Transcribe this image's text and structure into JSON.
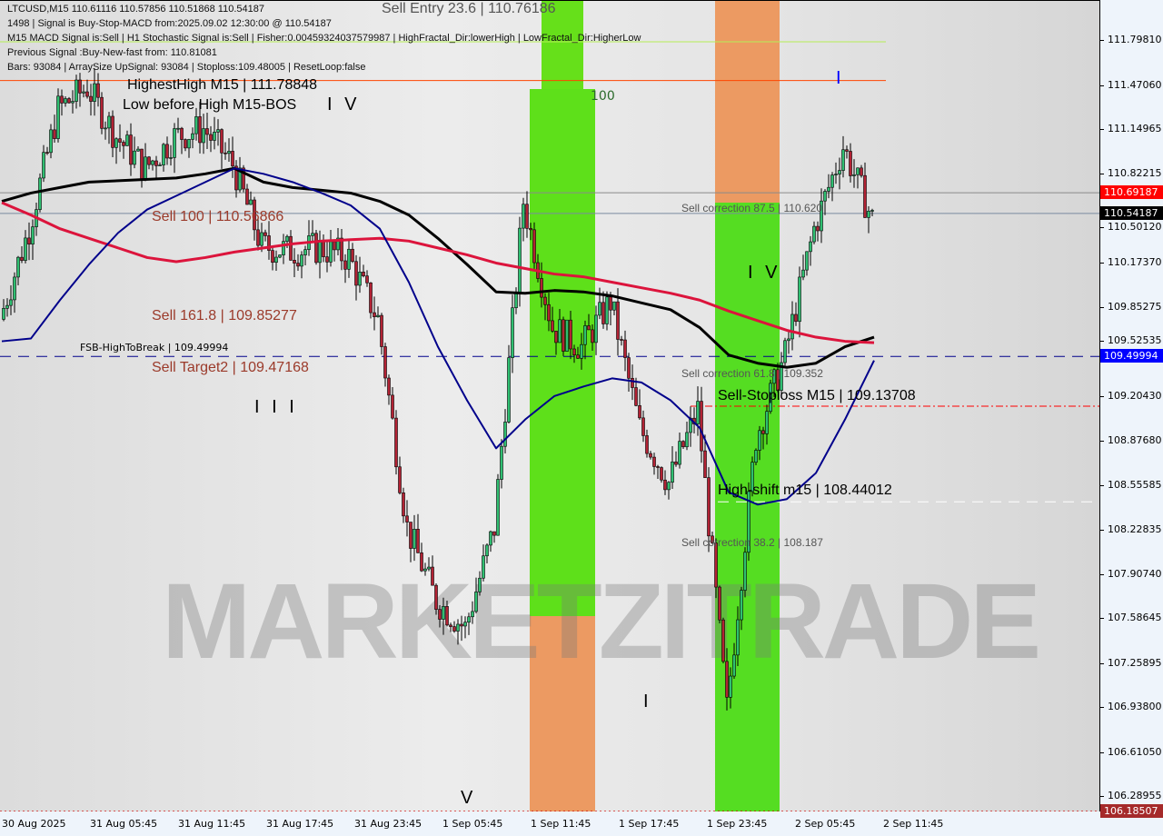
{
  "chart_data": {
    "type": "candlestick",
    "symbol": "LTCUSD",
    "timeframe": "M15",
    "ylim": [
      106.18,
      112.09
    ],
    "y_ticks": [
      "111.79810",
      "111.47060",
      "111.14965",
      "110.82215",
      "110.50120",
      "110.17370",
      "109.85275",
      "109.52535",
      "109.20430",
      "108.87680",
      "108.55585",
      "108.22835",
      "107.90740",
      "107.58645",
      "107.25895",
      "106.93800",
      "106.61050",
      "106.28955"
    ],
    "x_ticks": [
      "30 Aug 2025",
      "31 Aug 05:45",
      "31 Aug 11:45",
      "31 Aug 17:45",
      "31 Aug 23:45",
      "1 Sep 05:45",
      "1 Sep 11:45",
      "1 Sep 17:45",
      "1 Sep 23:45",
      "2 Sep 05:45",
      "2 Sep 11:45"
    ],
    "times": [
      "30 Aug 23:45",
      "31 Aug 01:45",
      "31 Aug 03:45",
      "31 Aug 05:45",
      "31 Aug 07:45",
      "31 Aug 09:45",
      "31 Aug 11:45",
      "31 Aug 13:45",
      "31 Aug 15:45",
      "31 Aug 17:45",
      "31 Aug 19:45",
      "31 Aug 21:45",
      "31 Aug 23:45",
      "1 Sep 01:45",
      "1 Sep 03:45",
      "1 Sep 05:45",
      "1 Sep 07:45",
      "1 Sep 09:45",
      "1 Sep 11:45",
      "1 Sep 13:45",
      "1 Sep 15:45",
      "1 Sep 17:45",
      "1 Sep 19:45",
      "1 Sep 21:45",
      "1 Sep 23:45",
      "2 Sep 01:45",
      "2 Sep 03:45",
      "2 Sep 05:45",
      "2 Sep 07:45",
      "2 Sep 09:45",
      "2 Sep 11:45"
    ],
    "close": [
      109.77,
      110.43,
      111.3,
      111.46,
      111.1,
      110.87,
      111.1,
      111.16,
      110.9,
      110.3,
      110.27,
      110.29,
      110.22,
      109.77,
      108.25,
      107.72,
      107.52,
      108.25,
      110.63,
      109.71,
      109.57,
      109.9,
      108.98,
      108.58,
      109.11,
      106.93,
      108.91,
      109.51,
      110.43,
      111.03,
      110.5
    ],
    "series": [
      {
        "color": "#000000",
        "values": [
          110.63,
          110.69,
          110.73,
          110.77,
          110.78,
          110.79,
          110.8,
          110.83,
          110.87,
          110.77,
          110.73,
          110.71,
          110.69,
          110.63,
          110.53,
          110.36,
          110.17,
          109.97,
          109.96,
          109.98,
          109.97,
          109.94,
          109.89,
          109.84,
          109.71,
          109.51,
          109.45,
          109.42,
          109.45,
          109.57,
          109.64
        ]
      },
      {
        "color": "#dc143c",
        "values": [
          110.62,
          110.53,
          110.43,
          110.36,
          110.29,
          110.22,
          110.19,
          110.22,
          110.26,
          110.29,
          110.32,
          110.34,
          110.35,
          110.36,
          110.34,
          110.29,
          110.24,
          110.18,
          110.14,
          110.1,
          110.08,
          110.04,
          110.0,
          109.96,
          109.91,
          109.83,
          109.76,
          109.69,
          109.64,
          109.61,
          109.6
        ]
      },
      {
        "color": "#00008b",
        "values": [
          109.61,
          109.63,
          109.91,
          110.17,
          110.4,
          110.57,
          110.67,
          110.77,
          110.87,
          110.83,
          110.77,
          110.69,
          110.6,
          110.43,
          110.04,
          109.57,
          109.18,
          108.83,
          109.04,
          109.21,
          109.28,
          109.34,
          109.31,
          109.18,
          108.98,
          108.51,
          108.42,
          108.46,
          108.65,
          109.04,
          109.47
        ]
      }
    ],
    "levels": [
      {
        "price": 111.51,
        "color": "#ff4500",
        "style": "solid"
      },
      {
        "price": 110.69187,
        "color": "#8a8a8a",
        "style": "solid"
      },
      {
        "price": 110.54187,
        "color": "#7a8aa0",
        "style": "solid"
      },
      {
        "price": 109.49994,
        "color": "#00008b",
        "style": "dashed"
      },
      {
        "price": 109.13708,
        "color": "#ff0000",
        "style": "dashdot"
      },
      {
        "price": 108.44012,
        "color": "#ffffff",
        "style": "dashed"
      },
      {
        "price": 106.18507,
        "color": "#cc0000",
        "style": "dotted"
      }
    ],
    "price_tags": [
      {
        "text": "110.69187",
        "color": "#ff0000"
      },
      {
        "text": "110.54187",
        "color": "#000000"
      },
      {
        "text": "109.49994",
        "color": "#0000ff"
      },
      {
        "text": "106.18507",
        "color": "#a52a2a"
      }
    ]
  },
  "header": {
    "line1": "LTCUSD,M15  110.61116 110.57856 110.51868 110.54187",
    "line2": "1498 | Signal is Buy-Stop-MACD from:2025.09.02 12:30:00 @ 110.54187",
    "line3": "M15 MACD Signal is:Sell | H1 Stochastic Signal is:Sell | Fisher:0.00459324037579987 | HighFractal_Dir:lowerHigh | LowFractal_Dir:HigherLow",
    "line4": "Previous Signal :Buy-New-fast from: 110.81081",
    "line5": "Bars: 93084 | ArraySize UpSignal: 93084 | Stoploss:109.48005 | ResetLoop:false"
  },
  "labels": {
    "sell_entry": "Sell Entry 23.6 | 110.76186",
    "highest_high": "HighestHigh   M15 | 111.78848",
    "low_before_high": "Low before High   M15-BOS",
    "wave_iv_top": "I V",
    "sell_100": "Sell 100 | 110.56866",
    "sell_1618": "Sell 161.8 | 109.85277",
    "fsb": "FSB-HighToBreak | 109.49994",
    "sell_target2": "Sell Target2 | 109.47168",
    "wave_iii": "I I I",
    "zone_100": "100",
    "corr_875": "Sell correction 87.5 | 110.620",
    "corr_618": "Sell correction 61.8 | 109.352",
    "corr_382": "Sell correction 38.2 | 108.187",
    "stoploss": "Sell-Stoploss M15 | 109.13708",
    "high_shift": "High-shift m15 | 108.44012",
    "wave_iv": "I V",
    "wave_i": "I",
    "wave_v": "V",
    "wave_i_blue": "I",
    "watermark": "MARKETZITRADE"
  }
}
